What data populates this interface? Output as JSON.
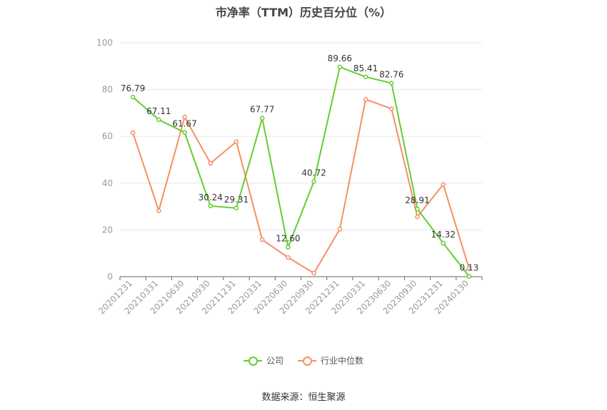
{
  "title": "市净率（TTM）历史百分位（%）",
  "source": "数据来源：恒生聚源",
  "colors": {
    "company": "#66cc33",
    "industry": "#f59066",
    "grid": "#e6e6ee",
    "axis": "#666666",
    "text": "#999999"
  },
  "chart_data": {
    "type": "line",
    "title": "市净率（TTM）历史百分位（%）",
    "categories": [
      "20201231",
      "20210331",
      "20210630",
      "20210930",
      "20211231",
      "20220331",
      "20220630",
      "20220930",
      "20221231",
      "20230331",
      "20230630",
      "20230930",
      "20231231",
      "20240130"
    ],
    "ylim": [
      0,
      100
    ],
    "yticks": [
      0,
      20,
      40,
      60,
      80,
      100
    ],
    "grid": true,
    "legend_position": "bottom",
    "series": [
      {
        "name": "公司",
        "values": [
          76.79,
          67.11,
          61.67,
          30.24,
          29.31,
          67.77,
          12.6,
          40.72,
          89.66,
          85.41,
          82.76,
          28.91,
          14.32,
          0.13
        ],
        "labels": [
          "76.79",
          "67.11",
          "61.67",
          "30.24",
          "29.31",
          "67.77",
          "12.60",
          "40.72",
          "89.66",
          "85.41",
          "82.76",
          "28.91",
          "14.32",
          "0.13"
        ]
      },
      {
        "name": "行业中位数",
        "values": [
          61.5,
          28.2,
          68.2,
          48.5,
          57.7,
          15.8,
          8.2,
          1.5,
          20.3,
          75.8,
          71.8,
          25.6,
          39.4,
          3.5
        ]
      }
    ]
  }
}
